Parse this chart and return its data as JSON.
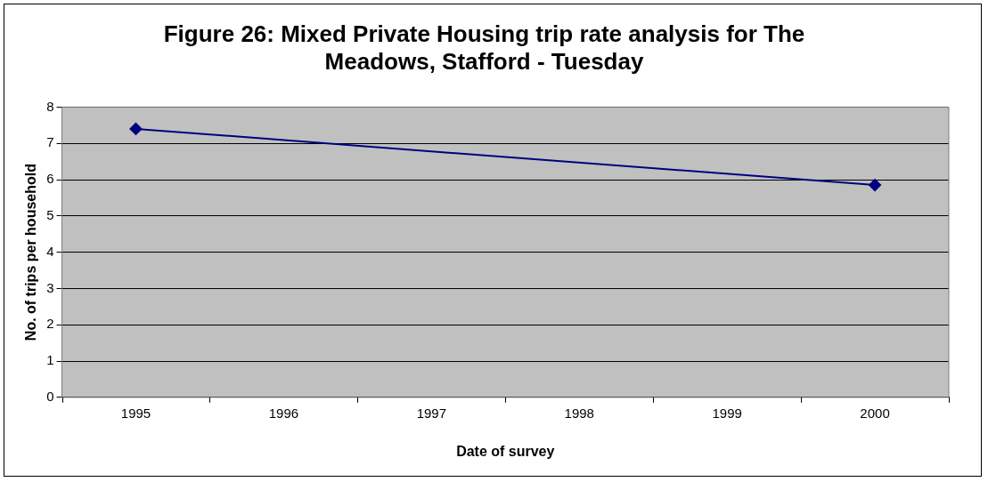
{
  "chart_data": {
    "type": "line",
    "title": "Figure 26: Mixed Private Housing trip rate analysis for The Meadows, Stafford - Tuesday",
    "xlabel": "Date of survey",
    "ylabel": "No. of trips per household",
    "x": [
      1995,
      2000
    ],
    "series": [
      {
        "color": "#000080",
        "values": [
          7.4,
          5.85
        ]
      }
    ],
    "xlim": [
      1994.5,
      2000.5
    ],
    "xticks": [
      1995,
      1996,
      1997,
      1998,
      1999,
      2000
    ],
    "ylim": [
      0,
      8
    ],
    "yticks": [
      0,
      1,
      2,
      3,
      4,
      5,
      6,
      7,
      8
    ],
    "grid": "y",
    "legend": false,
    "marker": "diamond",
    "line_style": "solid"
  }
}
